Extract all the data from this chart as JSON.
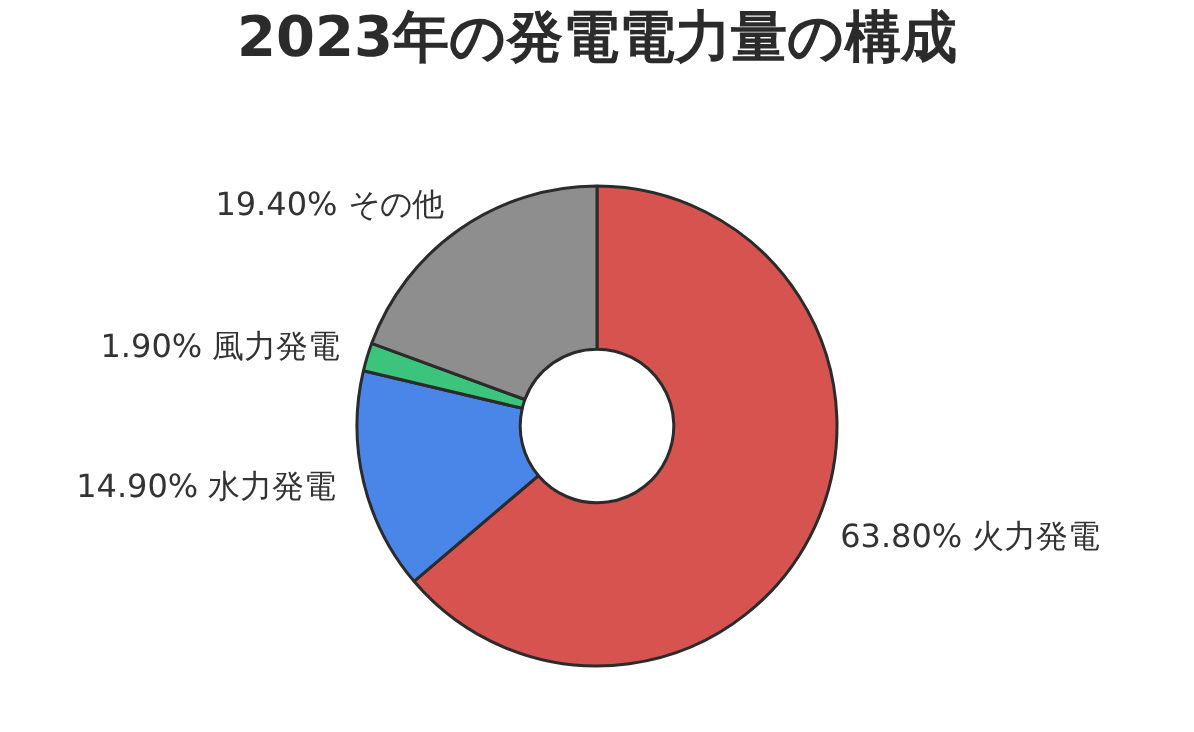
{
  "chart_data": {
    "type": "donut",
    "title": "2023年の発電電力量の構成",
    "categories": [
      "火力発電",
      "水力発電",
      "風力発電",
      "その他"
    ],
    "values": [
      63.8,
      14.9,
      1.9,
      19.4
    ],
    "value_labels": [
      "63.80%",
      "14.90%",
      "1.90%",
      "19.40%"
    ],
    "colors": [
      "#d65350",
      "#4a86e8",
      "#3cc47c",
      "#8e8e8e"
    ],
    "legend": false
  }
}
